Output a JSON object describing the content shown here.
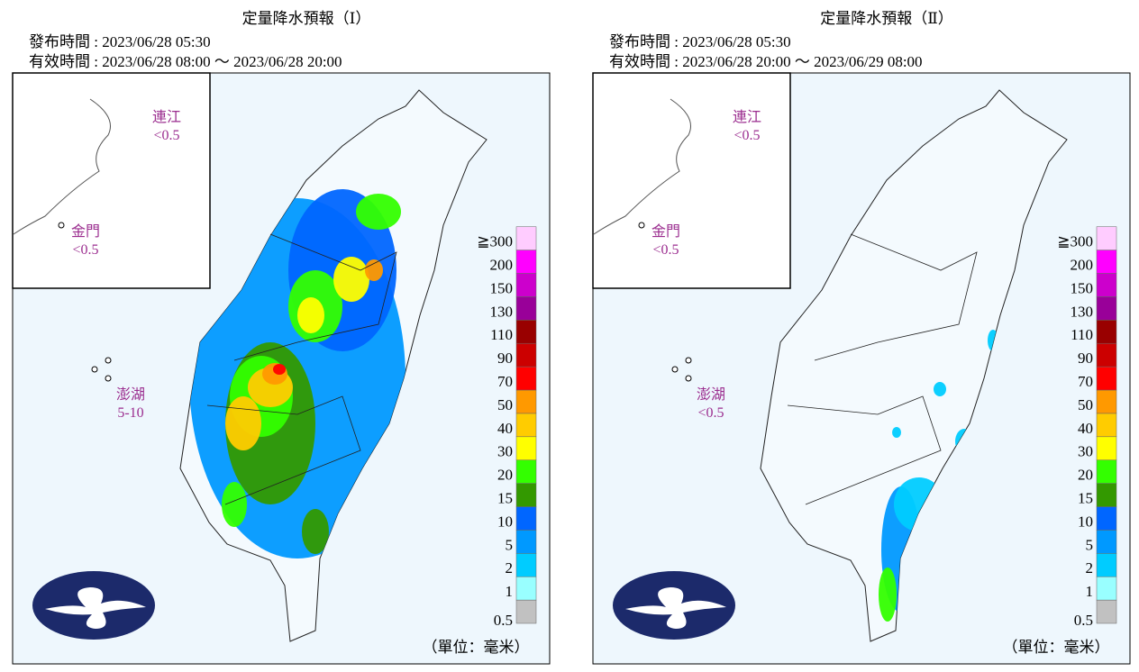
{
  "panels": [
    {
      "title": "定量降水預報（Ⅰ）",
      "issued": "發布時間 : 2023/06/28 05:30",
      "valid": "有效時間 : 2023/06/28 08:00 ～ 2023/06/28 20:00",
      "islands": [
        {
          "name": "連江",
          "amount": "<0.5"
        },
        {
          "name": "金門",
          "amount": "<0.5"
        },
        {
          "name": "澎湖",
          "amount": "5-10"
        }
      ]
    },
    {
      "title": "定量降水預報（Ⅱ）",
      "issued": "發布時間 : 2023/06/28 05:30",
      "valid": "有效時間 : 2023/06/28 20:00 ～ 2023/06/29 08:00",
      "islands": [
        {
          "name": "連江",
          "amount": "<0.5"
        },
        {
          "name": "金門",
          "amount": "<0.5"
        },
        {
          "name": "澎湖",
          "amount": "<0.5"
        }
      ]
    }
  ],
  "legend": {
    "labels": [
      "0.5",
      "1",
      "2",
      "5",
      "10",
      "15",
      "20",
      "30",
      "40",
      "50",
      "70",
      "90",
      "110",
      "130",
      "150",
      "200",
      "≧300"
    ],
    "colors": [
      "#c1c1c1",
      "#99ffff",
      "#00ccff",
      "#0099ff",
      "#0066ff",
      "#339900",
      "#33ff00",
      "#ffff00",
      "#ffcc00",
      "#ff9900",
      "#ff0000",
      "#cc0000",
      "#990000",
      "#990099",
      "#cc00cc",
      "#ff00ff",
      "#ffccff"
    ]
  },
  "unit": "（單位：毫米）"
}
